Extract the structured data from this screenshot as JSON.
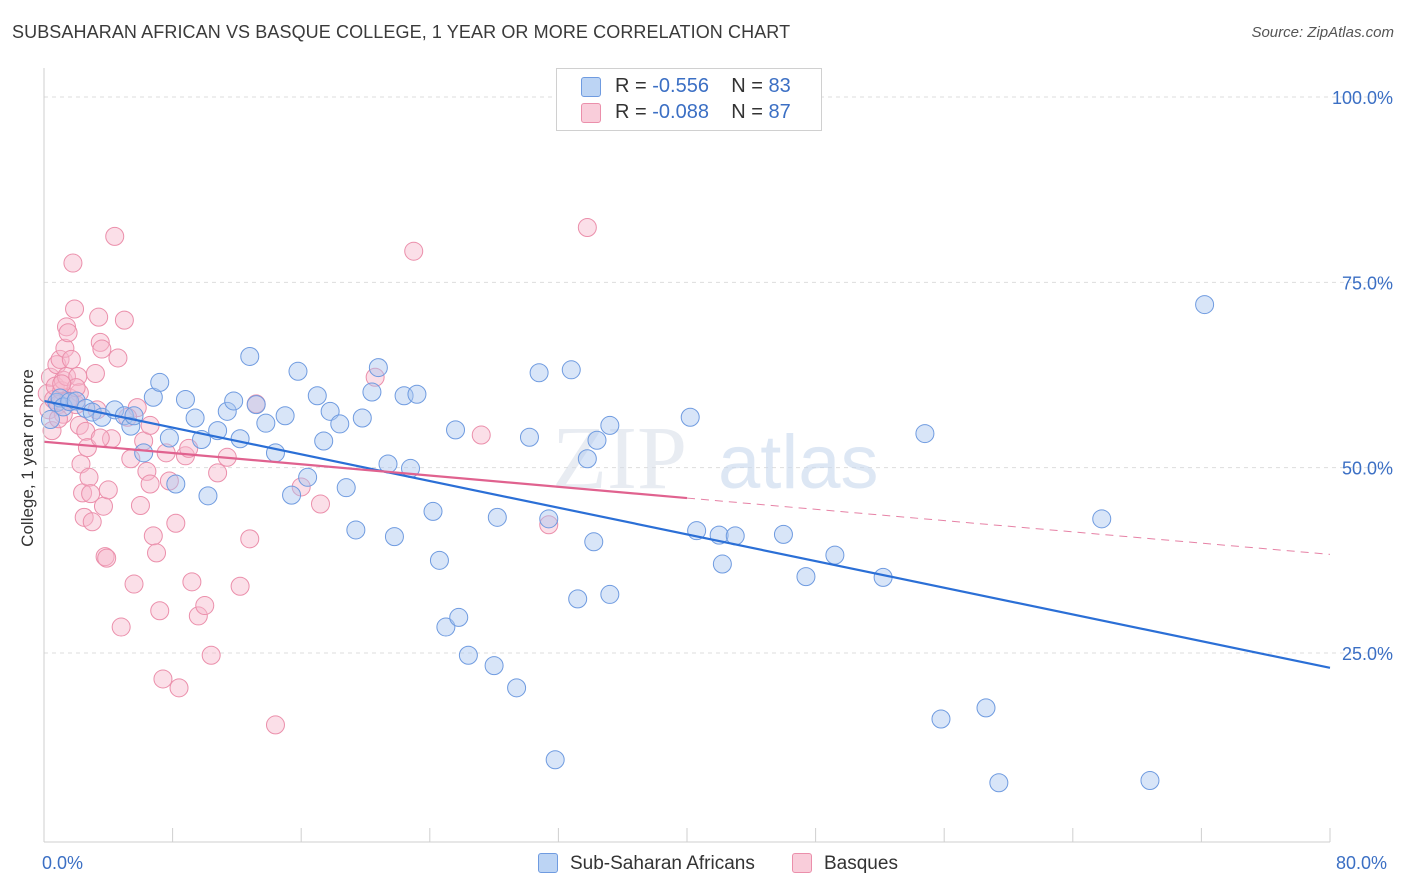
{
  "header": {
    "title": "SUBSAHARAN AFRICAN VS BASQUE COLLEGE, 1 YEAR OR MORE CORRELATION CHART",
    "source": "Source: ZipAtlas.com"
  },
  "legend": {
    "rows": [
      {
        "r_label": "R =",
        "r_value": "-0.556",
        "n_label": "N =",
        "n_value": "83"
      },
      {
        "r_label": "R =",
        "r_value": "-0.088",
        "n_label": "N =",
        "n_value": "87"
      }
    ]
  },
  "bottom_legend": {
    "series1": "Sub-Saharan Africans",
    "series2": "Basques"
  },
  "watermark": {
    "zip": "ZIP",
    "atlas": "atlas"
  },
  "colors": {
    "blue_fill": "#a9c6ef",
    "blue_stroke": "#6f9be0",
    "blue_line": "#2b6fd6",
    "pink_fill": "#f6b8cb",
    "pink_stroke": "#eb8fab",
    "pink_line": "#e0628f",
    "grid": "#dddddd",
    "tick_text": "#3b6fc4"
  },
  "chart_data": {
    "type": "scatter",
    "title": "SUBSAHARAN AFRICAN VS BASQUE COLLEGE, 1 YEAR OR MORE CORRELATION CHART",
    "xlabel": "",
    "ylabel": "College, 1 year or more",
    "xlim": [
      0,
      80
    ],
    "ylim": [
      0,
      105
    ],
    "x_tick_labels": [
      "0.0%",
      "80.0%"
    ],
    "y_ticks": [
      25,
      50,
      75,
      100
    ],
    "y_tick_labels": [
      "25.0%",
      "50.0%",
      "75.0%",
      "100.0%"
    ],
    "grid": true,
    "legend_position": "top-center",
    "series": [
      {
        "name": "Sub-Saharan Africans",
        "r": -0.556,
        "n": 83,
        "trend": {
          "x": [
            0,
            80
          ],
          "y": [
            59.0,
            23.0
          ],
          "dashed_from_x": null
        },
        "points": [
          [
            0.4,
            56.5
          ],
          [
            0.8,
            58.8
          ],
          [
            1.0,
            59.4
          ],
          [
            1.2,
            58.2
          ],
          [
            1.6,
            58.9
          ],
          [
            2.0,
            59.0
          ],
          [
            2.6,
            58.0
          ],
          [
            3.0,
            57.5
          ],
          [
            3.6,
            56.8
          ],
          [
            4.4,
            57.8
          ],
          [
            5.0,
            57.0
          ],
          [
            5.4,
            55.6
          ],
          [
            5.6,
            57.0
          ],
          [
            6.2,
            52.0
          ],
          [
            6.8,
            59.5
          ],
          [
            7.2,
            61.5
          ],
          [
            7.8,
            54.0
          ],
          [
            8.2,
            47.8
          ],
          [
            8.8,
            59.2
          ],
          [
            9.4,
            56.7
          ],
          [
            9.8,
            53.8
          ],
          [
            10.2,
            46.2
          ],
          [
            10.8,
            55.0
          ],
          [
            11.4,
            57.6
          ],
          [
            11.8,
            59.0
          ],
          [
            12.2,
            53.9
          ],
          [
            12.8,
            65.0
          ],
          [
            13.2,
            58.5
          ],
          [
            13.8,
            56.0
          ],
          [
            14.4,
            52.0
          ],
          [
            15.0,
            57.0
          ],
          [
            15.4,
            46.3
          ],
          [
            15.8,
            63.0
          ],
          [
            16.4,
            48.7
          ],
          [
            17.0,
            59.7
          ],
          [
            17.4,
            53.6
          ],
          [
            17.8,
            57.6
          ],
          [
            18.4,
            55.9
          ],
          [
            18.8,
            47.3
          ],
          [
            19.4,
            41.6
          ],
          [
            19.8,
            56.7
          ],
          [
            20.4,
            60.2
          ],
          [
            20.8,
            63.5
          ],
          [
            21.4,
            50.5
          ],
          [
            21.8,
            40.7
          ],
          [
            22.4,
            59.7
          ],
          [
            22.8,
            49.9
          ],
          [
            23.2,
            59.9
          ],
          [
            24.2,
            44.1
          ],
          [
            24.6,
            37.5
          ],
          [
            25.0,
            28.5
          ],
          [
            25.6,
            55.1
          ],
          [
            25.8,
            29.8
          ],
          [
            26.4,
            24.7
          ],
          [
            28.0,
            23.3
          ],
          [
            28.2,
            43.3
          ],
          [
            29.4,
            20.3
          ],
          [
            30.2,
            54.1
          ],
          [
            30.8,
            62.8
          ],
          [
            31.4,
            43.1
          ],
          [
            31.8,
            10.6
          ],
          [
            32.8,
            63.2
          ],
          [
            33.2,
            32.3
          ],
          [
            33.8,
            51.2
          ],
          [
            34.2,
            40.0
          ],
          [
            34.4,
            53.7
          ],
          [
            35.2,
            55.7
          ],
          [
            35.2,
            32.9
          ],
          [
            40.2,
            56.8
          ],
          [
            40.6,
            41.5
          ],
          [
            42.0,
            40.9
          ],
          [
            42.2,
            37.0
          ],
          [
            43.0,
            40.8
          ],
          [
            46.0,
            41.0
          ],
          [
            47.4,
            35.3
          ],
          [
            49.2,
            38.2
          ],
          [
            52.2,
            35.2
          ],
          [
            54.8,
            54.6
          ],
          [
            55.8,
            16.1
          ],
          [
            58.6,
            17.6
          ],
          [
            59.4,
            7.5
          ],
          [
            65.8,
            43.1
          ],
          [
            68.8,
            7.8
          ],
          [
            72.2,
            72.0
          ]
        ]
      },
      {
        "name": "Basques",
        "r": -0.088,
        "n": 87,
        "trend": {
          "x": [
            0,
            80
          ],
          "y": [
            53.5,
            38.3
          ],
          "dashed_from_x": 40
        },
        "points": [
          [
            0.2,
            60.0
          ],
          [
            0.3,
            57.8
          ],
          [
            0.4,
            62.2
          ],
          [
            0.5,
            55.0
          ],
          [
            0.6,
            59.2
          ],
          [
            0.7,
            61.0
          ],
          [
            0.8,
            63.9
          ],
          [
            0.9,
            58.5
          ],
          [
            1.0,
            64.6
          ],
          [
            1.1,
            60.4
          ],
          [
            1.2,
            57.2
          ],
          [
            1.2,
            61.8
          ],
          [
            1.3,
            66.1
          ],
          [
            1.4,
            62.3
          ],
          [
            1.4,
            69.0
          ],
          [
            1.5,
            68.2
          ],
          [
            1.6,
            59.4
          ],
          [
            1.7,
            64.6
          ],
          [
            1.8,
            77.6
          ],
          [
            1.9,
            71.4
          ],
          [
            2.0,
            58.5
          ],
          [
            2.1,
            62.3
          ],
          [
            2.2,
            60.1
          ],
          [
            2.2,
            55.7
          ],
          [
            2.3,
            50.5
          ],
          [
            2.4,
            46.6
          ],
          [
            2.5,
            43.3
          ],
          [
            2.6,
            54.9
          ],
          [
            2.7,
            52.7
          ],
          [
            2.8,
            48.7
          ],
          [
            2.9,
            46.5
          ],
          [
            3.0,
            42.7
          ],
          [
            3.2,
            62.7
          ],
          [
            3.3,
            57.8
          ],
          [
            3.4,
            70.3
          ],
          [
            3.5,
            66.9
          ],
          [
            3.6,
            66.0
          ],
          [
            3.7,
            44.8
          ],
          [
            3.8,
            38.0
          ],
          [
            3.9,
            37.8
          ],
          [
            4.0,
            47.0
          ],
          [
            4.2,
            53.9
          ],
          [
            4.4,
            81.2
          ],
          [
            4.6,
            64.8
          ],
          [
            4.8,
            28.5
          ],
          [
            5.0,
            69.9
          ],
          [
            5.4,
            51.2
          ],
          [
            5.6,
            34.3
          ],
          [
            5.8,
            58.1
          ],
          [
            6.0,
            44.9
          ],
          [
            6.2,
            53.6
          ],
          [
            6.4,
            49.5
          ],
          [
            6.6,
            47.8
          ],
          [
            6.8,
            40.8
          ],
          [
            7.0,
            38.5
          ],
          [
            7.2,
            30.7
          ],
          [
            7.4,
            21.5
          ],
          [
            7.6,
            52.0
          ],
          [
            7.8,
            48.2
          ],
          [
            8.2,
            42.5
          ],
          [
            8.4,
            20.3
          ],
          [
            8.8,
            51.6
          ],
          [
            9.2,
            34.6
          ],
          [
            9.6,
            30.0
          ],
          [
            10.0,
            31.4
          ],
          [
            10.4,
            24.7
          ],
          [
            10.8,
            49.3
          ],
          [
            11.4,
            51.4
          ],
          [
            12.2,
            34.0
          ],
          [
            12.8,
            40.4
          ],
          [
            13.2,
            58.6
          ],
          [
            14.4,
            15.3
          ],
          [
            16.0,
            47.4
          ],
          [
            17.2,
            45.1
          ],
          [
            20.6,
            62.2
          ],
          [
            23.0,
            79.2
          ],
          [
            27.2,
            54.4
          ],
          [
            31.4,
            42.3
          ],
          [
            33.8,
            82.4
          ],
          [
            1.5,
            59.0
          ],
          [
            2.0,
            60.8
          ],
          [
            1.1,
            61.3
          ],
          [
            0.9,
            56.6
          ],
          [
            6.6,
            55.7
          ],
          [
            5.2,
            56.8
          ],
          [
            9.0,
            52.6
          ],
          [
            3.5,
            54.0
          ]
        ]
      }
    ]
  }
}
